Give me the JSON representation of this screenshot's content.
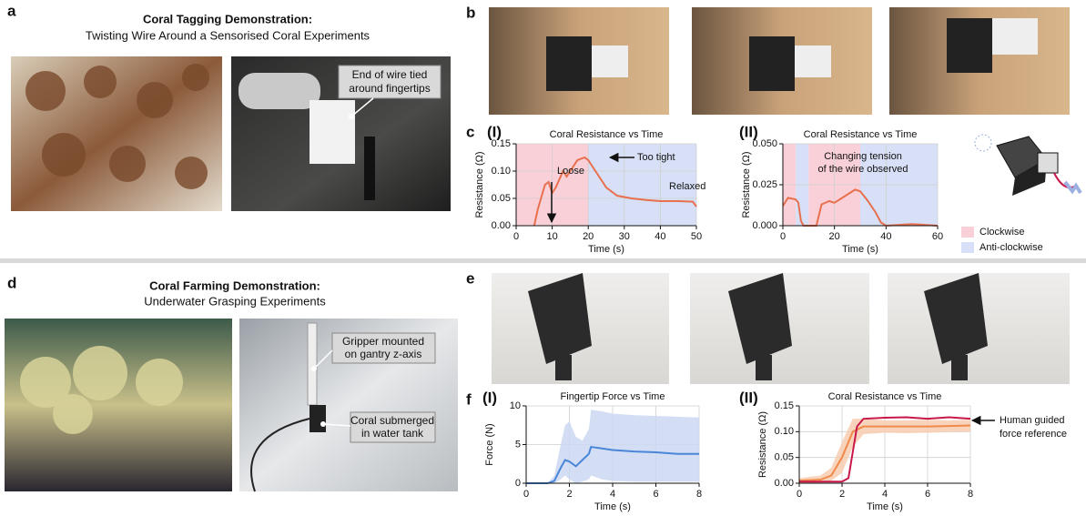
{
  "panels": {
    "a": {
      "label": "a",
      "title": "Coral Tagging Demonstration:",
      "subtitle": "Twisting Wire Around a Sensorised Coral Experiments",
      "callout": [
        "End of wire tied",
        "around fingertips"
      ]
    },
    "b": {
      "label": "b"
    },
    "c": {
      "label": "c"
    },
    "d": {
      "label": "d",
      "title": "Coral Farming Demonstration:",
      "subtitle": "Underwater Grasping Experiments",
      "callouts": [
        [
          "Gripper mounted",
          "on gantry z-axis"
        ],
        [
          "Coral submerged",
          "in water tank"
        ]
      ]
    },
    "e": {
      "label": "e"
    },
    "f": {
      "label": "f"
    }
  },
  "chart_data": [
    {
      "type": "line",
      "panel_label": "(I)",
      "title": "Coral Resistance vs Time",
      "x_label": "Time (s)",
      "y_label": "Resistance (Ω)",
      "xlim": [
        0,
        50
      ],
      "ylim": [
        0,
        0.15
      ],
      "xticks": [
        0,
        10,
        20,
        30,
        40,
        50
      ],
      "yticks": [
        {
          "value": 0,
          "label": "0.00"
        },
        {
          "value": 0.05,
          "label": "0.05"
        },
        {
          "value": 0.1,
          "label": "0.10"
        },
        {
          "value": 0.15,
          "label": "0.15"
        }
      ],
      "grid": true,
      "spans": [
        {
          "from": 0,
          "to": 20,
          "color": "#f9d0d8"
        },
        {
          "from": 20,
          "to": 50,
          "color": "#d7e0f6"
        }
      ],
      "annotations": [
        "Loose",
        "Too tight",
        "Relaxed"
      ],
      "series": [
        {
          "color": "#e8704e",
          "x": [
            5,
            6,
            8,
            9,
            10,
            11,
            13,
            14,
            15,
            17,
            19,
            20,
            22,
            25,
            28,
            32,
            36,
            40,
            45,
            49,
            50
          ],
          "values": [
            0,
            0.03,
            0.075,
            0.08,
            0.06,
            0.07,
            0.1,
            0.09,
            0.1,
            0.12,
            0.125,
            0.12,
            0.1,
            0.07,
            0.055,
            0.05,
            0.047,
            0.045,
            0.045,
            0.044,
            0.035
          ]
        }
      ]
    },
    {
      "type": "line",
      "panel_label": "(II)",
      "title": "Coral Resistance vs Time",
      "x_label": "Time (s)",
      "y_label": "Resistance (Ω)",
      "xlim": [
        0,
        60
      ],
      "ylim": [
        0,
        0.05
      ],
      "xticks": [
        0,
        20,
        40,
        60
      ],
      "yticks": [
        {
          "value": 0,
          "label": "0.000"
        },
        {
          "value": 0.025,
          "label": "0.025"
        },
        {
          "value": 0.05,
          "label": "0.050"
        }
      ],
      "grid": true,
      "spans": [
        {
          "from": 0,
          "to": 5,
          "color": "#f9d0d8"
        },
        {
          "from": 5,
          "to": 10,
          "color": "#d7e0f6"
        },
        {
          "from": 10,
          "to": 30,
          "color": "#f9d0d8"
        },
        {
          "from": 30,
          "to": 60,
          "color": "#d7e0f6"
        }
      ],
      "annotations": [
        [
          "Changing tension",
          "of the wire observed"
        ]
      ],
      "legend": [
        {
          "name": "Clockwise",
          "color": "#f9d0d8"
        },
        {
          "name": "Anti-clockwise",
          "color": "#d7e0f6"
        }
      ],
      "series": [
        {
          "color": "#e8704e",
          "x": [
            0,
            2,
            5,
            6,
            7,
            8,
            13,
            15,
            18,
            20,
            24,
            28,
            30,
            33,
            36,
            38,
            40,
            50,
            60
          ],
          "values": [
            0.012,
            0.017,
            0.016,
            0.014,
            0.003,
            0,
            0,
            0.013,
            0.015,
            0.014,
            0.018,
            0.022,
            0.021,
            0.015,
            0.008,
            0.002,
            0,
            0.001,
            0
          ]
        }
      ]
    },
    {
      "type": "line",
      "panel_label": "(I)",
      "title": "Fingertip Force vs Time",
      "x_label": "Time (s)",
      "y_label": "Force (N)",
      "xlim": [
        0,
        8
      ],
      "ylim": [
        0,
        10
      ],
      "xticks": [
        0,
        2,
        4,
        6,
        8
      ],
      "yticks": [
        0,
        5,
        10
      ],
      "grid": true,
      "series": [
        {
          "color": "#4a86d8",
          "band_color": "#cbd8f2",
          "x": [
            0,
            1,
            1.3,
            1.6,
            1.8,
            2,
            2.3,
            2.6,
            2.9,
            3,
            3.5,
            4,
            5,
            6,
            7,
            8
          ],
          "values": [
            0,
            0,
            0.3,
            2,
            3,
            2.8,
            2.2,
            3,
            3.8,
            4.7,
            4.5,
            4.3,
            4.1,
            4,
            3.8,
            3.8
          ],
          "lower": [
            0,
            0,
            0,
            0.5,
            1,
            0.5,
            0,
            0.2,
            0.5,
            1,
            0.5,
            0.3,
            0.2,
            0.2,
            0.2,
            0.2
          ],
          "upper": [
            0,
            0,
            1,
            5,
            7.5,
            8,
            6,
            5.5,
            7,
            9.5,
            9.3,
            9,
            8.8,
            8.7,
            8.6,
            8.5
          ]
        }
      ]
    },
    {
      "type": "line",
      "panel_label": "(II)",
      "title": "Coral Resistance vs Time",
      "x_label": "Time (s)",
      "y_label": "Resistance (Ω)",
      "xlim": [
        0,
        8
      ],
      "ylim": [
        0,
        0.15
      ],
      "xticks": [
        0,
        2,
        4,
        6,
        8
      ],
      "yticks": [
        {
          "value": 0,
          "label": "0.00"
        },
        {
          "value": 0.05,
          "label": "0.05"
        },
        {
          "value": 0.1,
          "label": "0.10"
        },
        {
          "value": 0.15,
          "label": "0.15"
        }
      ],
      "grid": true,
      "annotations": [
        [
          "Human guided",
          "force reference"
        ]
      ],
      "series": [
        {
          "color": "#f08a4b",
          "band_color": "#f8cdb0",
          "x": [
            0,
            1,
            1.5,
            2,
            2.5,
            3,
            4,
            5,
            6,
            7,
            8
          ],
          "values": [
            0.005,
            0.007,
            0.015,
            0.05,
            0.1,
            0.11,
            0.11,
            0.11,
            0.11,
            0.111,
            0.112
          ],
          "lower": [
            0,
            0,
            0.005,
            0.02,
            0.07,
            0.095,
            0.098,
            0.097,
            0.098,
            0.099,
            0.1
          ],
          "upper": [
            0.01,
            0.015,
            0.03,
            0.08,
            0.125,
            0.125,
            0.122,
            0.122,
            0.123,
            0.122,
            0.123
          ]
        },
        {
          "color": "#c8184a",
          "x": [
            0,
            2,
            2.3,
            2.5,
            2.7,
            3,
            4,
            5,
            6,
            7,
            8
          ],
          "values": [
            0.003,
            0.003,
            0.01,
            0.06,
            0.11,
            0.125,
            0.127,
            0.128,
            0.125,
            0.128,
            0.125
          ]
        }
      ]
    }
  ]
}
